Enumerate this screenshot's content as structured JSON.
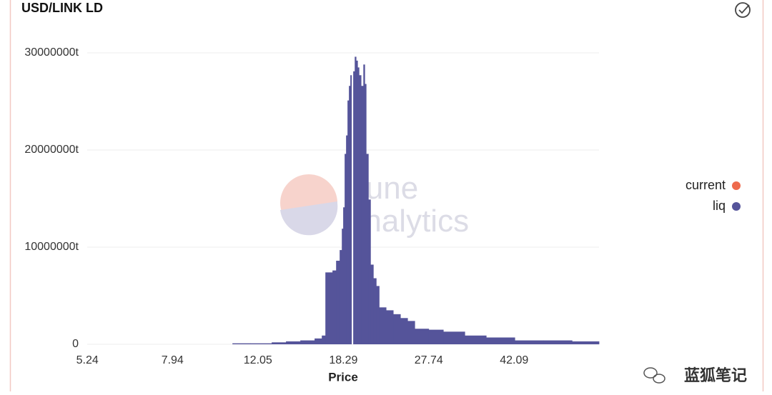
{
  "chart_data": {
    "type": "histogram",
    "title": "USD/LINK LD",
    "x_label": "Price",
    "watermark": "Dune Analytics",
    "footer": "蓝狐笔记",
    "xscale": "log",
    "xlim": [
      4.85,
      63.7
    ],
    "xticks": [
      5.24,
      7.94,
      12.05,
      18.29,
      27.74,
      42.09
    ],
    "ylim": [
      0,
      30000000
    ],
    "yticks": [
      0,
      {
        "value": 10000000,
        "label": "10000000t"
      },
      {
        "value": 20000000,
        "label": "20000000t"
      },
      {
        "value": 30000000,
        "label": "30000000t"
      }
    ],
    "grid": true,
    "legend": "right",
    "series": [
      {
        "name": "current",
        "color": "#ee6a4d",
        "x": [
          19.12
        ]
      },
      {
        "name": "liq",
        "color": "#55549a",
        "x": [
          10.64,
          11.61,
          12.89,
          13.82,
          14.82,
          15.89,
          16.46,
          16.75,
          17.34,
          17.65,
          17.96,
          18.15,
          18.27,
          18.4,
          18.53,
          18.66,
          18.79,
          18.92,
          19.12,
          19.33,
          19.46,
          19.6,
          19.74,
          19.94,
          20.16,
          20.3,
          20.44,
          20.66,
          20.88,
          21.17,
          21.47,
          21.78,
          22.53,
          23.33,
          24.16,
          25.02,
          25.91,
          27.74,
          29.79,
          33.08,
          36.73,
          42.23,
          48.56,
          55.85
        ],
        "values": [
          100000,
          100000,
          200000,
          300000,
          400000,
          600000,
          900000,
          7400000,
          7600000,
          8600000,
          9700000,
          11900000,
          14100000,
          19600000,
          21500000,
          25100000,
          26600000,
          27700000,
          28100000,
          29600000,
          29200000,
          28500000,
          27700000,
          26600000,
          28800000,
          26800000,
          19600000,
          14900000,
          8200000,
          6800000,
          6000000,
          3800000,
          3500000,
          3100000,
          2700000,
          2400000,
          1600000,
          1500000,
          1300000,
          900000,
          700000,
          400000,
          400000,
          300000
        ]
      }
    ]
  }
}
